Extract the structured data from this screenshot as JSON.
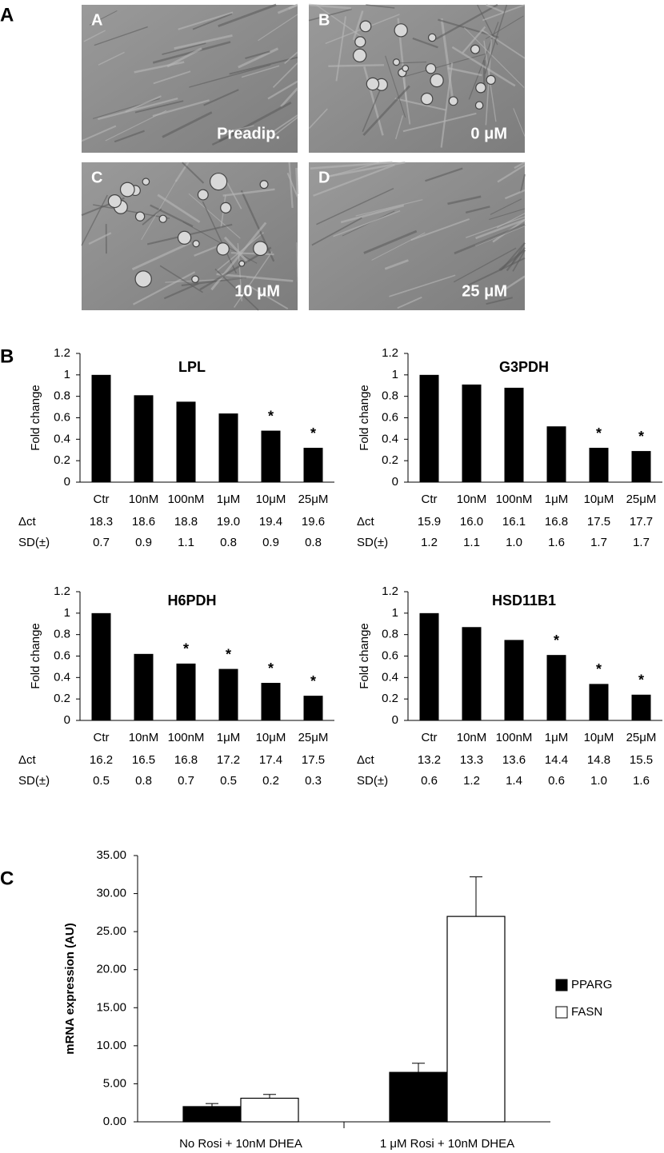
{
  "panel_labels": [
    "A",
    "B",
    "C"
  ],
  "micrographs": [
    {
      "letter": "A",
      "caption": "Preadip."
    },
    {
      "letter": "B",
      "caption": "0 μM"
    },
    {
      "letter": "C",
      "caption": "10 μM"
    },
    {
      "letter": "D",
      "caption": "25 μM"
    }
  ],
  "chart_data": [
    {
      "type": "bar",
      "title": "LPL",
      "y_label": "Fold change",
      "categories": [
        "Ctr",
        "10nM",
        "100nM",
        "1μM",
        "10μM",
        "25μM"
      ],
      "values": [
        1.0,
        0.81,
        0.75,
        0.64,
        0.48,
        0.32
      ],
      "color": "#000000",
      "annotations": [
        null,
        null,
        null,
        null,
        "*",
        "*"
      ],
      "ylim": [
        0,
        1.2
      ],
      "yticks": [
        0,
        0.2,
        0.4,
        0.6,
        0.8,
        1,
        1.2
      ],
      "table": {
        "row_labels": [
          "Δct",
          "SD(±)"
        ],
        "rows": [
          [
            "18.3",
            "18.6",
            "18.8",
            "19.0",
            "19.4",
            "19.6"
          ],
          [
            "0.7",
            "0.9",
            "1.1",
            "0.8",
            "0.9",
            "0.8"
          ]
        ]
      }
    },
    {
      "type": "bar",
      "title": "G3PDH",
      "y_label": "Fold change",
      "categories": [
        "Ctr",
        "10nM",
        "100nM",
        "1μM",
        "10μM",
        "25μM"
      ],
      "values": [
        1.0,
        0.91,
        0.88,
        0.52,
        0.32,
        0.29
      ],
      "color": "#000000",
      "annotations": [
        null,
        null,
        null,
        null,
        "*",
        "*"
      ],
      "ylim": [
        0,
        1.2
      ],
      "yticks": [
        0,
        0.2,
        0.4,
        0.6,
        0.8,
        1,
        1.2
      ],
      "table": {
        "row_labels": [
          "Δct",
          "SD(±)"
        ],
        "rows": [
          [
            "15.9",
            "16.0",
            "16.1",
            "16.8",
            "17.5",
            "17.7"
          ],
          [
            "1.2",
            "1.1",
            "1.0",
            "1.6",
            "1.7",
            "1.7"
          ]
        ]
      }
    },
    {
      "type": "bar",
      "title": "H6PDH",
      "y_label": "Fold change",
      "categories": [
        "Ctr",
        "10nM",
        "100nM",
        "1μM",
        "10μM",
        "25μM"
      ],
      "values": [
        1.0,
        0.62,
        0.53,
        0.48,
        0.35,
        0.23
      ],
      "color": "#000000",
      "annotations": [
        null,
        null,
        "*",
        "*",
        "*",
        "*"
      ],
      "ylim": [
        0,
        1.2
      ],
      "yticks": [
        0,
        0.2,
        0.4,
        0.6,
        0.8,
        1,
        1.2
      ],
      "table": {
        "row_labels": [
          "Δct",
          "SD(±)"
        ],
        "rows": [
          [
            "16.2",
            "16.5",
            "16.8",
            "17.2",
            "17.4",
            "17.5"
          ],
          [
            "0.5",
            "0.8",
            "0.7",
            "0.5",
            "0.2",
            "0.3"
          ]
        ]
      }
    },
    {
      "type": "bar",
      "title": "HSD11B1",
      "y_label": "Fold change",
      "categories": [
        "Ctr",
        "10nM",
        "100nM",
        "1μM",
        "10μM",
        "25μM"
      ],
      "values": [
        1.0,
        0.87,
        0.75,
        0.61,
        0.34,
        0.24
      ],
      "color": "#000000",
      "annotations": [
        null,
        null,
        null,
        "*",
        "*",
        "*"
      ],
      "ylim": [
        0,
        1.2
      ],
      "yticks": [
        0,
        0.2,
        0.4,
        0.6,
        0.8,
        1,
        1.2
      ],
      "table": {
        "row_labels": [
          "Δct",
          "SD(±)"
        ],
        "rows": [
          [
            "13.2",
            "13.3",
            "13.6",
            "14.4",
            "14.8",
            "15.5"
          ],
          [
            "0.6",
            "1.2",
            "1.4",
            "0.6",
            "1.0",
            "1.6"
          ]
        ]
      }
    },
    {
      "type": "grouped_bar",
      "y_label": "mRNA expression (AU)",
      "categories": [
        "No Rosi + 10nM DHEA",
        "1 μM Rosi + 10nM DHEA"
      ],
      "series": [
        {
          "name": "PPARG",
          "color": "#000000",
          "values": [
            2.0,
            6.5
          ],
          "errors": [
            0.4,
            1.2
          ]
        },
        {
          "name": "FASN",
          "color": "#ffffff",
          "values": [
            3.1,
            27.0
          ],
          "errors": [
            0.5,
            5.2
          ]
        }
      ],
      "ylim": [
        0,
        35
      ],
      "yticks": [
        {
          "value": 0,
          "label": "0.00"
        },
        {
          "value": 5,
          "label": "5.00"
        },
        {
          "value": 10,
          "label": "10.00"
        },
        {
          "value": 15,
          "label": "15.00"
        },
        {
          "value": 20,
          "label": "20.00"
        },
        {
          "value": 25,
          "label": "25.00"
        },
        {
          "value": 30,
          "label": "30.00"
        },
        {
          "value": 35,
          "label": "35.00"
        }
      ],
      "legend": "right"
    }
  ]
}
